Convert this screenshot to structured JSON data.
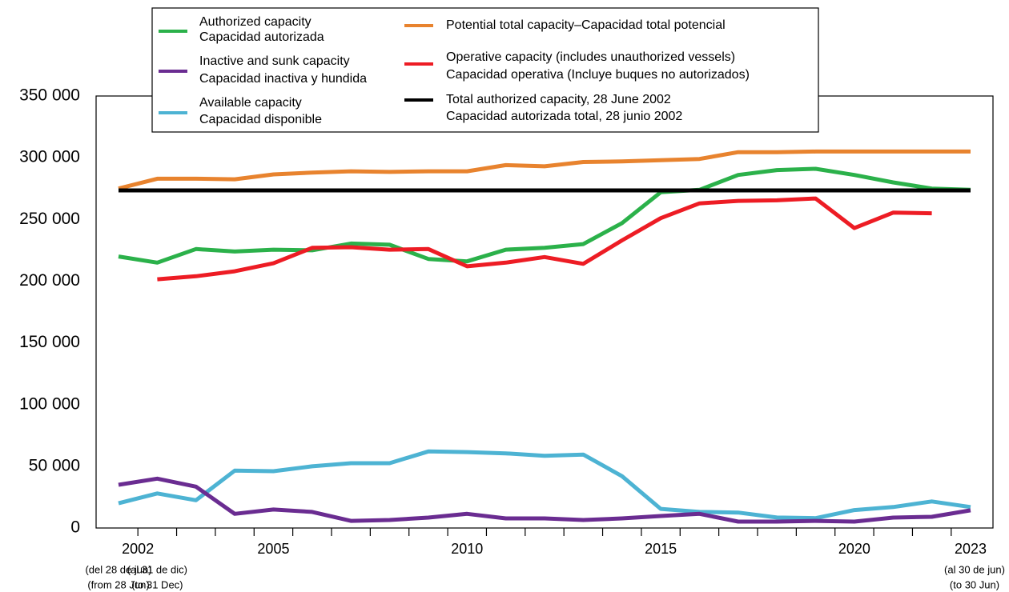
{
  "chart_data": {
    "type": "line",
    "categories": [
      null,
      null,
      null,
      null,
      "2005",
      null,
      null,
      null,
      null,
      "2010",
      null,
      null,
      null,
      null,
      "2015",
      null,
      null,
      null,
      null,
      "2020",
      null,
      null,
      "2023"
    ],
    "first_year_label": "2002",
    "category_notes": [
      [
        "(del 28 de jun)",
        "(from 28 Jun)"
      ],
      [
        "(al 31 de dic)",
        "(to 31 Dec)"
      ],
      null,
      null,
      null,
      null,
      null,
      null,
      null,
      null,
      null,
      null,
      null,
      null,
      null,
      null,
      null,
      null,
      null,
      null,
      null,
      null,
      [
        "(al 30 de jun)",
        "(to 30 Jun)"
      ]
    ],
    "ylim": [
      0,
      350000
    ],
    "yticks": [
      0,
      {
        "value": 50000,
        "label": "50 000"
      },
      {
        "value": 100000,
        "label": "100 000"
      },
      {
        "value": 150000,
        "label": "150 000"
      },
      {
        "value": 200000,
        "label": "200 000"
      },
      {
        "value": 250000,
        "label": "250 000"
      },
      {
        "value": 300000,
        "label": "300 000"
      },
      {
        "value": 350000,
        "label": "350 000"
      }
    ],
    "series": [
      {
        "name": "Authorized capacity",
        "name_es": "Capacidad autorizada",
        "color": "#2bb14a",
        "values": [
          220000,
          215000,
          226000,
          224000,
          225500,
          225000,
          230500,
          229500,
          218000,
          216000,
          225500,
          227000,
          230000,
          247000,
          272000,
          274000,
          286000,
          290000,
          291000,
          286000,
          280000,
          275000,
          274000
        ]
      },
      {
        "name": "Inactive and sunk capacity",
        "name_es": "Capacidad inactiva y hundida",
        "color": "#6a2c91",
        "values": [
          35000,
          40000,
          33500,
          11500,
          15000,
          13000,
          5800,
          6500,
          8400,
          11500,
          7800,
          7800,
          6500,
          7800,
          9700,
          11500,
          5200,
          5200,
          5800,
          5200,
          8400,
          9100,
          14300
        ]
      },
      {
        "name": "Available capacity",
        "name_es": "Capacidad disponible",
        "color": "#4db3d3",
        "values": [
          20000,
          28000,
          22500,
          46500,
          46000,
          50000,
          52500,
          52500,
          62000,
          61500,
          60500,
          58500,
          59500,
          42000,
          15500,
          13000,
          12500,
          8500,
          8000,
          14500,
          17000,
          21500,
          17000
        ]
      },
      {
        "name": "Potential total capacity–Capacidad total potencial",
        "color": "#e8832e",
        "values": [
          275000,
          283000,
          283000,
          282500,
          286500,
          288000,
          289000,
          288500,
          289000,
          289000,
          294000,
          293000,
          296500,
          297000,
          298000,
          299000,
          304500,
          304500,
          305000,
          305000,
          305000,
          305000,
          305000
        ]
      },
      {
        "name": "Operative capacity (includes unauthorized vessels)",
        "name_es": "Capacidad operativa (Incluye buques no autorizados)",
        "color": "#ed1c24",
        "values": [
          null,
          201500,
          204000,
          208000,
          214500,
          227000,
          227500,
          225500,
          226000,
          212000,
          215000,
          219500,
          214000,
          233000,
          251000,
          263000,
          265000,
          265500,
          267000,
          243000,
          255500,
          255000,
          null
        ]
      },
      {
        "name": "Total authorized capacity, 28 June 2002",
        "name_es": "Capacidad autorizada total, 28 junio 2002",
        "color": "#000000",
        "values": [
          273500,
          273500,
          273500,
          273500,
          273500,
          273500,
          273500,
          273500,
          273500,
          273500,
          273500,
          273500,
          273500,
          273500,
          273500,
          273500,
          273500,
          273500,
          273500,
          273500,
          273500,
          273500,
          273500
        ]
      }
    ]
  }
}
